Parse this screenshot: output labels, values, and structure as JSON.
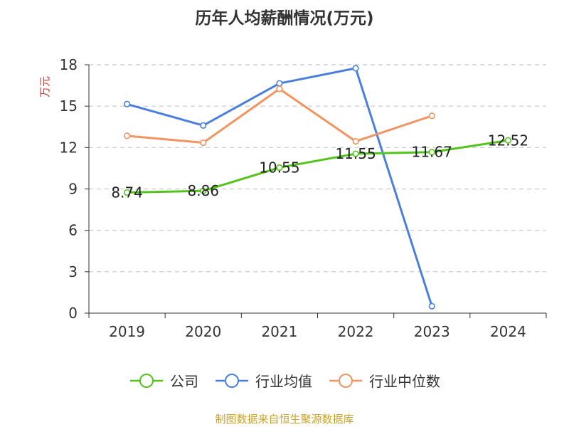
{
  "chart_data": {
    "type": "line",
    "title": "历年人均薪酬情况(万元)",
    "ylabel": "万元",
    "xlabel": "",
    "categories": [
      "2019",
      "2020",
      "2021",
      "2022",
      "2023",
      "2024"
    ],
    "ylim": [
      0,
      18
    ],
    "yticks": [
      0,
      3,
      6,
      9,
      12,
      15,
      18
    ],
    "grid": true,
    "legend_position": "bottom",
    "series": [
      {
        "name": "公司",
        "values": [
          8.74,
          8.86,
          10.55,
          11.55,
          11.67,
          12.52
        ],
        "labels": [
          "8.74",
          "8.86",
          "10.55",
          "11.55",
          "11.67",
          "12.52"
        ],
        "color": "#52c41a"
      },
      {
        "name": "行业均值",
        "values": [
          15.15,
          13.6,
          16.65,
          17.75,
          0.5,
          null
        ],
        "color": "#4a7fdc"
      },
      {
        "name": "行业中位数",
        "values": [
          12.85,
          12.35,
          16.25,
          12.45,
          14.3,
          null
        ],
        "color": "#f29360"
      }
    ]
  },
  "source_text": "制图数据来自恒生聚源数据库"
}
